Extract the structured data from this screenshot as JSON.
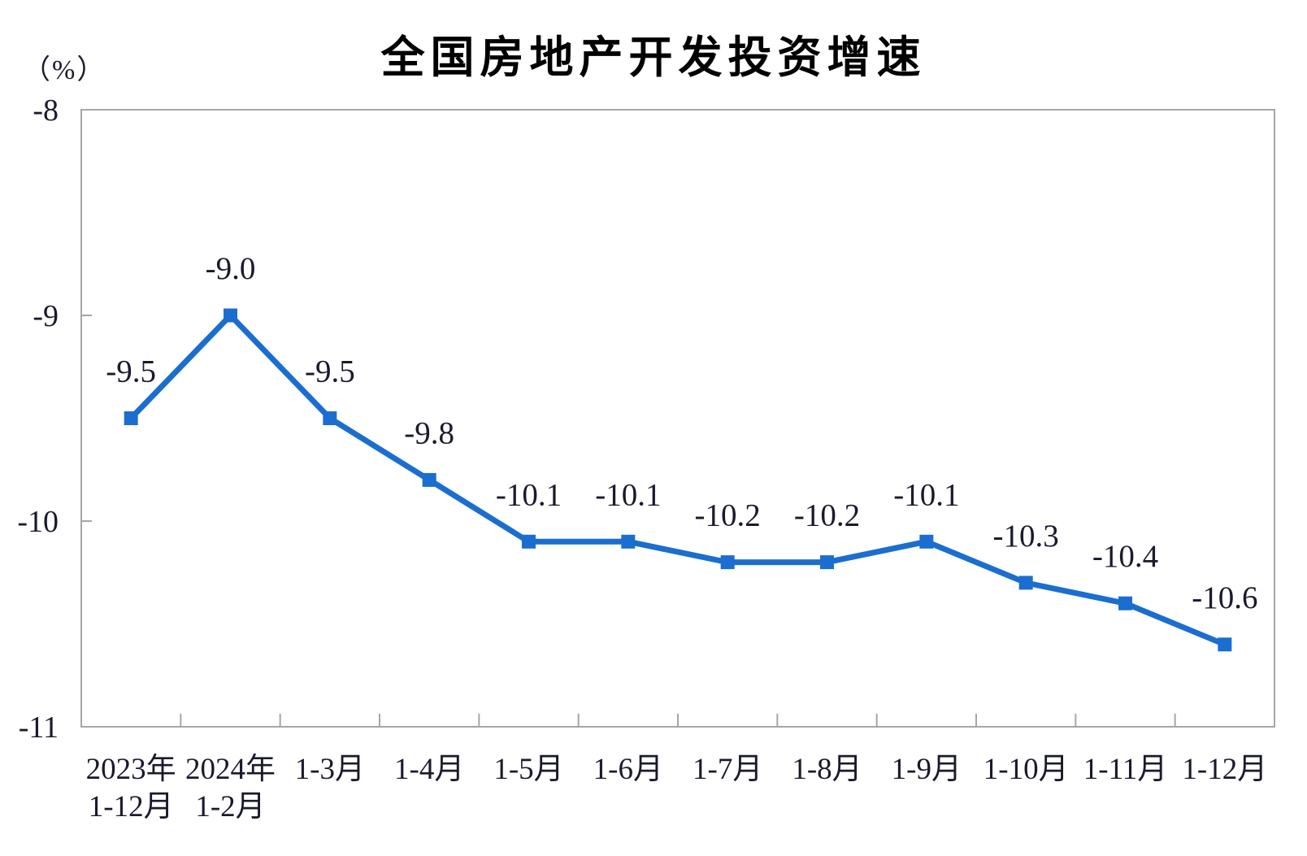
{
  "chart_data": {
    "type": "line",
    "title": "全国房地产开发投资增速",
    "y_unit_label": "（%）",
    "categories": [
      [
        "2023年",
        "1-12月"
      ],
      [
        "2024年",
        "1-2月"
      ],
      [
        "1-3月"
      ],
      [
        "1-4月"
      ],
      [
        "1-5月"
      ],
      [
        "1-6月"
      ],
      [
        "1-7月"
      ],
      [
        "1-8月"
      ],
      [
        "1-9月"
      ],
      [
        "1-10月"
      ],
      [
        "1-11月"
      ],
      [
        "1-12月"
      ]
    ],
    "values": [
      -9.5,
      -9.0,
      -9.5,
      -9.8,
      -10.1,
      -10.1,
      -10.2,
      -10.2,
      -10.1,
      -10.3,
      -10.4,
      -10.6
    ],
    "data_labels": [
      "-9.5",
      "-9.0",
      "-9.5",
      "-9.8",
      "-10.1",
      "-10.1",
      "-10.2",
      "-10.2",
      "-10.1",
      "-10.3",
      "-10.4",
      "-10.6"
    ],
    "ylim": [
      -11,
      -8
    ],
    "y_tick_values": [
      -8,
      -9,
      -10,
      -11
    ],
    "y_tick_labels": [
      "-8",
      "-9",
      "-10",
      "-11"
    ],
    "xlabel": "",
    "ylabel": "（%）",
    "grid": false,
    "legend": "none",
    "marker": "square",
    "colors": {
      "line": "#1B6ED0",
      "marker": "#1B6ED0",
      "text": "#1A1A2E",
      "title": "#000000",
      "axis": "#A6A6A6"
    }
  }
}
